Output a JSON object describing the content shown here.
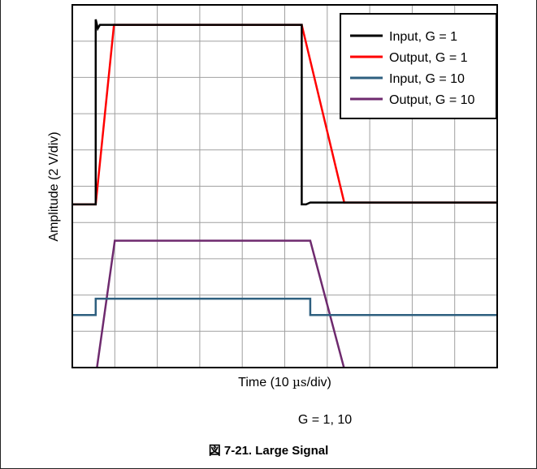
{
  "chart_data": {
    "type": "line",
    "xlabel_prefix": "Time (10 ",
    "xlabel_unit": "µs",
    "xlabel_suffix": "/div)",
    "ylabel": "Amplitude (2 V/div)",
    "condition": "G = 1, 10",
    "caption": "図 7-21. Large Signal",
    "grid": true,
    "legend_position": "top-right",
    "x_range": [
      0,
      100
    ],
    "y_range": [
      -10,
      10
    ],
    "series": [
      {
        "name": "Input, G = 1",
        "color": "#000000",
        "x": [
          0,
          5.5,
          5.5,
          6.0,
          6.5,
          54.0,
          54.0,
          55.0,
          56.0,
          100
        ],
        "y": [
          -1,
          -1,
          9.2,
          8.7,
          8.9,
          8.9,
          -1,
          -1.0,
          -0.9,
          -0.9
        ]
      },
      {
        "name": "Output, G = 1",
        "color": "#ff0000",
        "x": [
          0,
          5.5,
          9.8,
          54.0,
          64.0,
          100
        ],
        "y": [
          -1,
          -1,
          8.9,
          8.9,
          -0.9,
          -0.9
        ]
      },
      {
        "name": "Input, G = 10",
        "color": "#2e5f7f",
        "x": [
          0,
          5.5,
          5.5,
          56.0,
          56.0,
          100
        ],
        "y": [
          -7.1,
          -7.1,
          -6.2,
          -6.2,
          -7.1,
          -7.1
        ]
      },
      {
        "name": "Output, G = 10",
        "color": "#6e2a6e",
        "x": [
          0,
          5.5,
          10.0,
          56.0,
          64.5,
          100
        ],
        "y": [
          -10.5,
          -10.5,
          -3.0,
          -3.0,
          -10.5,
          -10.5
        ]
      }
    ]
  }
}
